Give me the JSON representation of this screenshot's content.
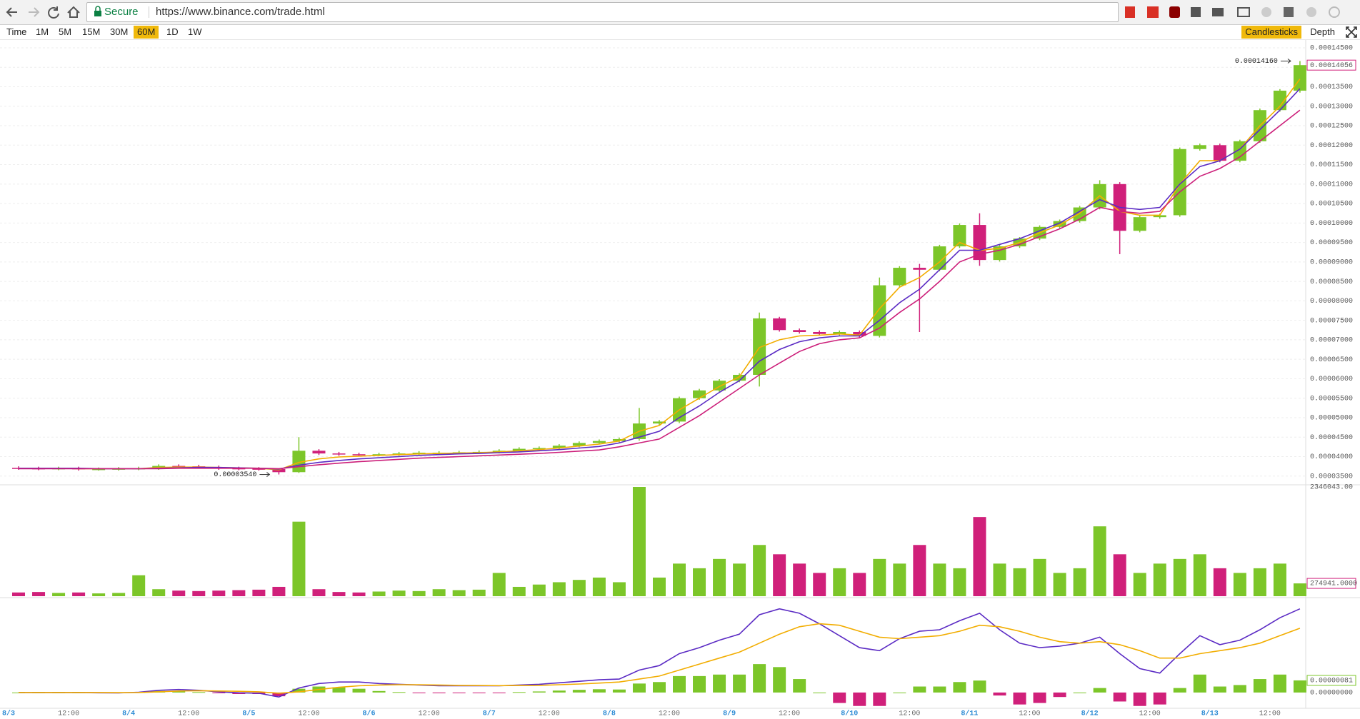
{
  "browser": {
    "secure": "Secure",
    "url": "https://www.binance.com/trade.html"
  },
  "toolbar": {
    "intervals": [
      "Time",
      "1M",
      "5M",
      "15M",
      "30M",
      "60M",
      "1D",
      "1W"
    ],
    "active": "60M",
    "views": [
      "Candlesticks",
      "Depth"
    ],
    "active_view": "Candlesticks"
  },
  "chart_data": [
    {
      "type": "candlestick",
      "up_color": "#7cc629",
      "down_color": "#d0207a",
      "grid": true,
      "categories": [
        "8/3",
        null,
        null,
        "12:00",
        null,
        null,
        "8/4",
        null,
        null,
        "12:00",
        null,
        null,
        "8/5",
        null,
        null,
        "12:00",
        null,
        null,
        "8/6",
        null,
        null,
        "12:00",
        null,
        null,
        "8/7",
        null,
        null,
        "12:00",
        null,
        null,
        "8/8",
        null,
        null,
        "12:00",
        null,
        null,
        "8/9",
        null,
        null,
        "12:00",
        null,
        null,
        "8/10",
        null,
        null,
        "12:00",
        null,
        null,
        "8/11",
        null,
        null,
        "12:00",
        null,
        null,
        "8/12",
        null,
        null,
        "12:00",
        null,
        null,
        "8/13",
        null,
        null,
        "12:00",
        null
      ],
      "open": [
        3.71e-05,
        3.7e-05,
        3.69e-05,
        3.7e-05,
        3.68e-05,
        3.68e-05,
        3.69e-05,
        3.7e-05,
        3.76e-05,
        3.75e-05,
        3.73e-05,
        3.7e-05,
        3.69e-05,
        3.68e-05,
        3.6e-05,
        4.15e-05,
        4.08e-05,
        4.06e-05,
        4.05e-05,
        4.06e-05,
        4.08e-05,
        4.1e-05,
        4.1e-05,
        4.11e-05,
        4.12e-05,
        4.15e-05,
        4.2e-05,
        4.22e-05,
        4.28e-05,
        4.35e-05,
        4.4e-05,
        4.45e-05,
        4.85e-05,
        4.9e-05,
        5.5e-05,
        5.7e-05,
        5.95e-05,
        6.1e-05,
        7.55e-05,
        7.25e-05,
        7.2e-05,
        7.15e-05,
        7.2e-05,
        7.1e-05,
        8.4e-05,
        8.85e-05,
        8.8e-05,
        9.4e-05,
        9.95e-05,
        9.05e-05,
        9.4e-05,
        9.6e-05,
        9.9e-05,
        0.0001005,
        0.000104,
        0.00011,
        9.8e-05,
        0.0001015,
        0.000102,
        0.000119,
        0.00012,
        0.000116,
        0.000121,
        0.000129,
        0.000134
      ],
      "high": [
        3.75e-05,
        3.74e-05,
        3.74e-05,
        3.74e-05,
        3.72e-05,
        3.73e-05,
        3.74e-05,
        3.8e-05,
        3.8e-05,
        3.79e-05,
        3.77e-05,
        3.74e-05,
        3.73e-05,
        3.7e-05,
        4.5e-05,
        4.19e-05,
        4.12e-05,
        4.1e-05,
        4.1e-05,
        4.12e-05,
        4.14e-05,
        4.14e-05,
        4.15e-05,
        4.16e-05,
        4.19e-05,
        4.24e-05,
        4.26e-05,
        4.32e-05,
        4.39e-05,
        4.44e-05,
        4.49e-05,
        5.25e-05,
        4.94e-05,
        5.54e-05,
        5.74e-05,
        5.99e-05,
        6.14e-05,
        7.7e-05,
        7.59e-05,
        7.29e-05,
        7.24e-05,
        7.24e-05,
        7.24e-05,
        8.6e-05,
        8.89e-05,
        8.95e-05,
        9.44e-05,
        9.99e-05,
        0.0001025,
        9.44e-05,
        9.64e-05,
        9.94e-05,
        0.0001009,
        0.0001044,
        0.000111,
        0.0001105,
        0.0001019,
        0.0001024,
        0.0001194,
        0.0001204,
        0.0001204,
        0.0001214,
        0.0001294,
        0.0001344,
        0.0001416
      ],
      "low": [
        3.66e-05,
        3.65e-05,
        3.65e-05,
        3.64e-05,
        3.64e-05,
        3.64e-05,
        3.65e-05,
        3.66e-05,
        3.71e-05,
        3.69e-05,
        3.66e-05,
        3.65e-05,
        3.64e-05,
        3.54e-05,
        3.58e-05,
        4.04e-05,
        4.02e-05,
        4.01e-05,
        4.01e-05,
        4.02e-05,
        4.04e-05,
        4.06e-05,
        4.06e-05,
        4.07e-05,
        4.08e-05,
        4.11e-05,
        4.16e-05,
        4.18e-05,
        4.24e-05,
        4.31e-05,
        4.36e-05,
        4.41e-05,
        4.81e-05,
        4.86e-05,
        5.46e-05,
        5.66e-05,
        5.91e-05,
        5.8e-05,
        7.21e-05,
        7.16e-05,
        7.11e-05,
        7.11e-05,
        7.06e-05,
        7.06e-05,
        8.36e-05,
        7.2e-05,
        8.76e-05,
        9.36e-05,
        8.9e-05,
        9.01e-05,
        9.36e-05,
        9.56e-05,
        9.86e-05,
        0.0001001,
        0.0001035,
        9.2e-05,
        9.76e-05,
        0.0001011,
        0.0001016,
        0.0001186,
        0.0001156,
        0.0001156,
        0.0001206,
        0.0001286,
        0.0001335
      ],
      "close": [
        3.7e-05,
        3.69e-05,
        3.7e-05,
        3.68e-05,
        3.68e-05,
        3.69e-05,
        3.7e-05,
        3.76e-05,
        3.75e-05,
        3.73e-05,
        3.7e-05,
        3.69e-05,
        3.68e-05,
        3.6e-05,
        4.15e-05,
        4.08e-05,
        4.06e-05,
        4.05e-05,
        4.06e-05,
        4.08e-05,
        4.1e-05,
        4.1e-05,
        4.11e-05,
        4.12e-05,
        4.15e-05,
        4.2e-05,
        4.22e-05,
        4.28e-05,
        4.35e-05,
        4.4e-05,
        4.45e-05,
        4.85e-05,
        4.9e-05,
        5.5e-05,
        5.7e-05,
        5.95e-05,
        6.1e-05,
        7.55e-05,
        7.25e-05,
        7.2e-05,
        7.15e-05,
        7.2e-05,
        7.1e-05,
        8.4e-05,
        8.85e-05,
        8.8e-05,
        9.4e-05,
        9.95e-05,
        9.05e-05,
        9.4e-05,
        9.6e-05,
        9.9e-05,
        0.0001005,
        0.000104,
        0.00011,
        9.8e-05,
        0.0001015,
        0.000102,
        0.000119,
        0.00012,
        0.000116,
        0.000121,
        0.000129,
        0.000134,
        0.00014056
      ],
      "series": [
        {
          "color": "#f2ad00",
          "values": [
            3.7e-05,
            3.7e-05,
            3.7e-05,
            3.69e-05,
            3.69e-05,
            3.69e-05,
            3.69e-05,
            3.72e-05,
            3.73e-05,
            3.73e-05,
            3.72e-05,
            3.71e-05,
            3.7e-05,
            3.66e-05,
            3.85e-05,
            3.94e-05,
            3.99e-05,
            4.01e-05,
            4.03e-05,
            4.05e-05,
            4.07e-05,
            4.08e-05,
            4.09e-05,
            4.1e-05,
            4.12e-05,
            4.15e-05,
            4.18e-05,
            4.22e-05,
            4.27e-05,
            4.32e-05,
            4.4e-05,
            4.65e-05,
            4.8e-05,
            5.2e-05,
            5.5e-05,
            5.8e-05,
            6.05e-05,
            6.8e-05,
            7e-05,
            7.1e-05,
            7.12e-05,
            7.15e-05,
            7.12e-05,
            7.8e-05,
            8.35e-05,
            8.6e-05,
            9e-05,
            9.5e-05,
            9.3e-05,
            9.35e-05,
            9.5e-05,
            9.75e-05,
            9.95e-05,
            0.0001025,
            0.000107,
            0.000103,
            0.000102,
            0.000102,
            0.00011,
            0.000116,
            0.000116,
            0.000119,
            0.000125,
            0.00013,
            0.000137
          ]
        },
        {
          "color": "#5b2bc4",
          "values": [
            3.7e-05,
            3.7e-05,
            3.7e-05,
            3.7e-05,
            3.69e-05,
            3.69e-05,
            3.69e-05,
            3.7e-05,
            3.71e-05,
            3.72e-05,
            3.72e-05,
            3.71e-05,
            3.7e-05,
            3.68e-05,
            3.78e-05,
            3.85e-05,
            3.9e-05,
            3.94e-05,
            3.97e-05,
            4e-05,
            4.03e-05,
            4.05e-05,
            4.07e-05,
            4.08e-05,
            4.1e-05,
            4.12e-05,
            4.15e-05,
            4.18e-05,
            4.22e-05,
            4.26e-05,
            4.35e-05,
            4.5e-05,
            4.65e-05,
            5e-05,
            5.3e-05,
            5.65e-05,
            5.95e-05,
            6.45e-05,
            6.75e-05,
            6.95e-05,
            7.05e-05,
            7.1e-05,
            7.1e-05,
            7.5e-05,
            7.95e-05,
            8.3e-05,
            8.8e-05,
            9.3e-05,
            9.3e-05,
            9.45e-05,
            9.6e-05,
            9.8e-05,
            0.0001,
            0.000103,
            0.000106,
            0.000104,
            0.0001035,
            0.000104,
            0.00011,
            0.0001145,
            0.000116,
            0.000119,
            0.000124,
            0.000129,
            0.0001345
          ]
        },
        {
          "color": "#cc1f7a",
          "values": [
            3.69e-05,
            3.69e-05,
            3.69e-05,
            3.69e-05,
            3.69e-05,
            3.69e-05,
            3.69e-05,
            3.69e-05,
            3.7e-05,
            3.7e-05,
            3.7e-05,
            3.7e-05,
            3.7e-05,
            3.69e-05,
            3.74e-05,
            3.79e-05,
            3.83e-05,
            3.87e-05,
            3.9e-05,
            3.93e-05,
            3.96e-05,
            3.98e-05,
            4e-05,
            4.02e-05,
            4.04e-05,
            4.06e-05,
            4.08e-05,
            4.11e-05,
            4.14e-05,
            4.17e-05,
            4.25e-05,
            4.35e-05,
            4.45e-05,
            4.75e-05,
            5.05e-05,
            5.4e-05,
            5.75e-05,
            6.1e-05,
            6.4e-05,
            6.7e-05,
            6.9e-05,
            7e-05,
            7.05e-05,
            7.3e-05,
            7.7e-05,
            8.05e-05,
            8.5e-05,
            9e-05,
            9.2e-05,
            9.3e-05,
            9.45e-05,
            9.65e-05,
            9.85e-05,
            0.000101,
            0.000104,
            0.000103,
            0.0001025,
            0.000103,
            0.000108,
            0.000112,
            0.000114,
            0.000117,
            0.000121,
            0.000125,
            0.000129
          ]
        }
      ],
      "ylim": [
        3.33e-05,
        0.0001472
      ],
      "yticks": [
        {
          "value": 3.5e-05,
          "label": "0.00003500"
        },
        {
          "value": 4e-05,
          "label": "0.00004000"
        },
        {
          "value": 4.5e-05,
          "label": "0.00004500"
        },
        {
          "value": 5e-05,
          "label": "0.00005000"
        },
        {
          "value": 5.5e-05,
          "label": "0.00005500"
        },
        {
          "value": 6e-05,
          "label": "0.00006000"
        },
        {
          "value": 6.5e-05,
          "label": "0.00006500"
        },
        {
          "value": 7e-05,
          "label": "0.00007000"
        },
        {
          "value": 7.5e-05,
          "label": "0.00007500"
        },
        {
          "value": 8e-05,
          "label": "0.00008000"
        },
        {
          "value": 8.5e-05,
          "label": "0.00008500"
        },
        {
          "value": 9e-05,
          "label": "0.00009000"
        },
        {
          "value": 9.5e-05,
          "label": "0.00009500"
        },
        {
          "value": 0.0001,
          "label": "0.00010000"
        },
        {
          "value": 0.000105,
          "label": "0.00010500"
        },
        {
          "value": 0.00011,
          "label": "0.00011000"
        },
        {
          "value": 0.000115,
          "label": "0.00011500"
        },
        {
          "value": 0.00012,
          "label": "0.00012000"
        },
        {
          "value": 0.000125,
          "label": "0.00012500"
        },
        {
          "value": 0.00013,
          "label": "0.00013000"
        },
        {
          "value": 0.000135,
          "label": "0.00013500"
        },
        {
          "value": 0.00014,
          "label": "0.00014000"
        },
        {
          "value": 0.000145,
          "label": "0.00014500"
        }
      ],
      "annotations": [
        {
          "value": 0.0001416,
          "label": "0.00014160"
        },
        {
          "value": 3.54e-05,
          "label": "0.00003540"
        }
      ],
      "last": {
        "value": 0.00014056,
        "label": "0.00014056"
      }
    },
    {
      "type": "bar",
      "values": [
        80000,
        90000,
        70000,
        80000,
        60000,
        70000,
        450000,
        150000,
        120000,
        110000,
        120000,
        130000,
        140000,
        200000,
        1600000,
        150000,
        90000,
        80000,
        100000,
        120000,
        110000,
        150000,
        130000,
        140000,
        500000,
        200000,
        250000,
        300000,
        350000,
        400000,
        300000,
        2346043,
        400000,
        700000,
        600000,
        800000,
        700000,
        1100000,
        900000,
        700000,
        500000,
        600000,
        500000,
        800000,
        700000,
        1100000,
        700000,
        600000,
        1700000,
        700000,
        600000,
        800000,
        500000,
        600000,
        1500000,
        900000,
        500000,
        700000,
        800000,
        900000,
        600000,
        500000,
        600000,
        700000,
        274941
      ],
      "ylim": [
        0,
        2346043
      ],
      "yticks": [
        {
          "value": 2346043,
          "label": "2346043.00"
        }
      ],
      "last": {
        "value": 274941,
        "label": "274941.0000"
      }
    },
    {
      "type": "macd",
      "series": [
        {
          "color": "#5b2bc4",
          "values": [
            0,
            0,
            0,
            0,
            -2e-08,
            -3e-08,
            2e-08,
            1.5e-07,
            2e-07,
            1.5e-07,
            5e-08,
            -2e-08,
            -5e-08,
            -3e-07,
            3e-07,
            6e-07,
            7e-07,
            7e-07,
            6e-07,
            5.5e-07,
            5e-07,
            4.5e-07,
            4.5e-07,
            4.5e-07,
            4.5e-07,
            5e-07,
            5.5e-07,
            6.5e-07,
            7.5e-07,
            8.5e-07,
            9e-07,
            1.5e-06,
            1.8e-06,
            2.6e-06,
            3e-06,
            3.5e-06,
            3.9e-06,
            5.2e-06,
            5.6e-06,
            5.3e-06,
            4.6e-06,
            3.8e-06,
            3e-06,
            2.8e-06,
            3.6e-06,
            4.1e-06,
            4.2e-06,
            4.8e-06,
            5.3e-06,
            4.2e-06,
            3.3e-06,
            3e-06,
            3.1e-06,
            3.3e-06,
            3.7e-06,
            2.6e-06,
            1.6e-06,
            1.3e-06,
            2.6e-06,
            3.8e-06,
            3.2e-06,
            3.5e-06,
            4.2e-06,
            5e-06,
            5.6e-06
          ]
        },
        {
          "color": "#f2ad00",
          "values": [
            0,
            0,
            0,
            0,
            0,
            -1e-08,
            0,
            5e-08,
            1e-07,
            1.2e-07,
            1e-07,
            8e-08,
            5e-08,
            -5e-08,
            5e-08,
            2e-07,
            3.5e-07,
            4.5e-07,
            5e-07,
            5.2e-07,
            5.2e-07,
            5e-07,
            4.8e-07,
            4.7e-07,
            4.6e-07,
            4.7e-07,
            4.8e-07,
            5.2e-07,
            5.7e-07,
            6.3e-07,
            7e-07,
            9e-07,
            1.1e-06,
            1.5e-06,
            1.9e-06,
            2.3e-06,
            2.7e-06,
            3.3e-06,
            3.9e-06,
            4.4e-06,
            4.6e-06,
            4.5e-06,
            4.1e-06,
            3.7e-06,
            3.6e-06,
            3.7e-06,
            3.8e-06,
            4.1e-06,
            4.5e-06,
            4.4e-06,
            4.1e-06,
            3.7e-06,
            3.4e-06,
            3.3e-06,
            3.4e-06,
            3.2e-06,
            2.8e-06,
            2.3e-06,
            2.3e-06,
            2.6e-06,
            2.8e-06,
            3e-06,
            3.3e-06,
            3.8e-06,
            4.3e-06
          ]
        }
      ],
      "histogram": [
        0,
        0,
        0,
        0,
        -2e-08,
        -2e-08,
        2e-08,
        1e-07,
        1e-07,
        3e-08,
        -5e-08,
        -1e-07,
        -1e-07,
        -2.5e-07,
        2.5e-07,
        4e-07,
        3.5e-07,
        2.5e-07,
        1e-07,
        3e-08,
        -2e-08,
        -5e-08,
        -3e-08,
        -2e-08,
        -1e-08,
        3e-08,
        7e-08,
        1.3e-07,
        1.8e-07,
        2.2e-07,
        2e-07,
        6e-07,
        7e-07,
        1.1e-06,
        1.1e-06,
        1.2e-06,
        1.2e-06,
        1.9e-06,
        1.7e-06,
        9e-07,
        0,
        -7e-07,
        -9e-07,
        -9e-07,
        0,
        4e-07,
        4e-07,
        7e-07,
        8e-07,
        -2e-07,
        -8e-07,
        -7e-07,
        -3e-07,
        0,
        3e-07,
        -6e-07,
        -9e-07,
        -8e-07,
        3e-07,
        1.2e-06,
        4e-07,
        5e-07,
        9e-07,
        1.2e-06,
        8.1e-07
      ],
      "ylim": [
        -9.6e-07,
        6.3e-06
      ],
      "yticks": [
        {
          "value": 0,
          "label": "0.00000000"
        }
      ],
      "last": {
        "value": 8.1e-07,
        "label": "0.00000081"
      }
    }
  ]
}
